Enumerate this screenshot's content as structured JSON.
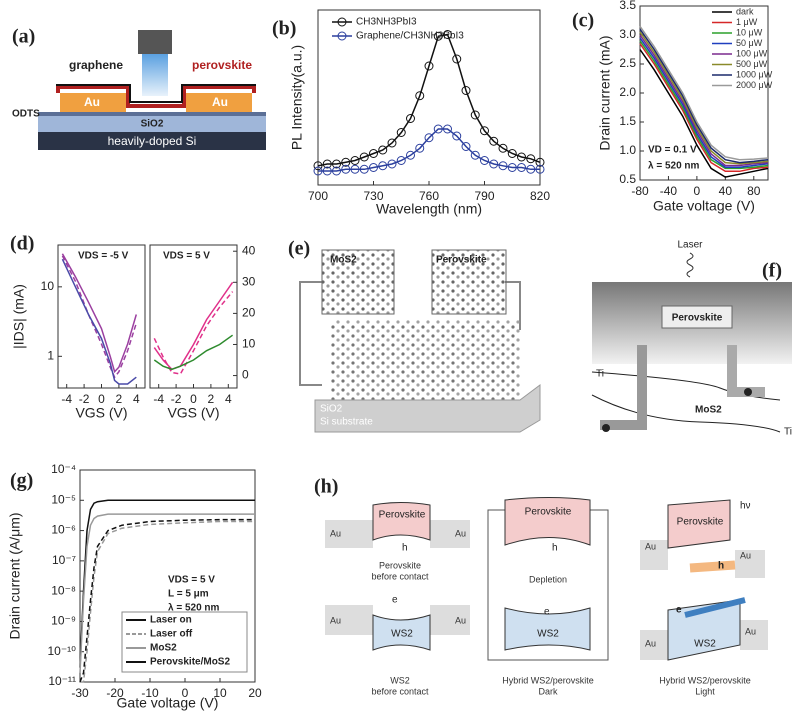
{
  "chart_data": [
    {
      "type": "line",
      "panel": "(b)",
      "xlabel": "Wavelength (nm)",
      "ylabel": "PL Intensity(a.u.)",
      "x": [
        700,
        705,
        710,
        715,
        720,
        725,
        730,
        735,
        740,
        745,
        750,
        755,
        760,
        765,
        770,
        775,
        780,
        785,
        790,
        795,
        800,
        805,
        810,
        815,
        820
      ],
      "series": [
        {
          "name": "CH3NH3PbI3",
          "color": "#111111",
          "marker": "circle-plus",
          "values": [
            0.11,
            0.12,
            0.12,
            0.13,
            0.14,
            0.16,
            0.18,
            0.2,
            0.24,
            0.3,
            0.38,
            0.51,
            0.68,
            0.85,
            0.86,
            0.72,
            0.54,
            0.4,
            0.31,
            0.25,
            0.21,
            0.18,
            0.16,
            0.15,
            0.13
          ]
        },
        {
          "name": "Graphene/CH3NH3PbI3",
          "color": "#2b3f9e",
          "marker": "circle-plus",
          "values": [
            0.08,
            0.08,
            0.08,
            0.09,
            0.09,
            0.09,
            0.1,
            0.11,
            0.12,
            0.14,
            0.17,
            0.21,
            0.27,
            0.32,
            0.32,
            0.28,
            0.22,
            0.17,
            0.14,
            0.12,
            0.11,
            0.1,
            0.1,
            0.09,
            0.09
          ]
        }
      ],
      "xlim": [
        700,
        820
      ],
      "ylim": [
        0,
        1
      ],
      "xticks": [
        700,
        730,
        760,
        790,
        820
      ],
      "legend": "upper left"
    },
    {
      "type": "line",
      "panel": "(c)",
      "xlabel": "Gate voltage (V)",
      "ylabel": "Drain current (mA)",
      "x": [
        -80,
        -60,
        -40,
        -20,
        0,
        20,
        40,
        60,
        80,
        100
      ],
      "series": [
        {
          "name": "dark",
          "color": "#000000",
          "values": [
            2.75,
            2.4,
            2.0,
            1.6,
            1.1,
            0.7,
            0.55,
            0.6,
            0.65,
            0.7
          ]
        },
        {
          "name": "1 μW",
          "color": "#d62728",
          "values": [
            2.85,
            2.5,
            2.1,
            1.7,
            1.2,
            0.8,
            0.65,
            0.65,
            0.7,
            0.72
          ]
        },
        {
          "name": "10 μW",
          "color": "#2ca02c",
          "values": [
            2.9,
            2.55,
            2.15,
            1.75,
            1.25,
            0.85,
            0.7,
            0.7,
            0.72,
            0.75
          ]
        },
        {
          "name": "50 μW",
          "color": "#1f3fbf",
          "values": [
            2.95,
            2.6,
            2.2,
            1.8,
            1.3,
            0.9,
            0.72,
            0.72,
            0.75,
            0.78
          ]
        },
        {
          "name": "100 μW",
          "color": "#7b2a8e",
          "values": [
            3.0,
            2.65,
            2.25,
            1.85,
            1.35,
            0.95,
            0.75,
            0.75,
            0.78,
            0.8
          ]
        },
        {
          "name": "500 μW",
          "color": "#8a8a2a",
          "values": [
            3.05,
            2.7,
            2.3,
            1.9,
            1.4,
            1.0,
            0.8,
            0.78,
            0.8,
            0.82
          ]
        },
        {
          "name": "1000 μW",
          "color": "#1b2a6b",
          "values": [
            3.1,
            2.75,
            2.35,
            1.95,
            1.45,
            1.05,
            0.85,
            0.8,
            0.82,
            0.85
          ]
        },
        {
          "name": "2000 μW",
          "color": "#9a9a9a",
          "values": [
            3.15,
            2.8,
            2.4,
            2.0,
            1.5,
            1.1,
            0.9,
            0.85,
            0.86,
            0.88
          ]
        }
      ],
      "xlim": [
        -80,
        100
      ],
      "ylim": [
        0.5,
        3.5
      ],
      "xticks": [
        -80,
        -40,
        0,
        40,
        80
      ],
      "yticks": [
        0.5,
        {
          "value": 1,
          "label": "1.0"
        },
        1.5,
        {
          "value": 2,
          "label": "2.0"
        },
        2.5,
        {
          "value": 3,
          "label": "3.0"
        },
        3.5
      ],
      "annotations": [
        "VD = 0.1 V",
        "λ = 520 nm"
      ],
      "legend": "upper right"
    },
    {
      "type": "line",
      "panel": "(d)",
      "xlabel": "VGS (V)",
      "ylabel": "|IDS| (mA)",
      "log_y": true,
      "x": [
        -4.5,
        -3,
        -1.5,
        0,
        1,
        1.5,
        2,
        3,
        4
      ],
      "series": [
        {
          "color": "#9b3fa0",
          "values": [
            30,
            14,
            6,
            2.5,
            1,
            0.6,
            0.7,
            1.5,
            4
          ]
        },
        {
          "color": "#9b3fa0",
          "dash": true,
          "values": [
            28,
            12,
            4,
            1.5,
            0.7,
            0.5,
            0.6,
            1.2,
            3
          ]
        },
        {
          "color": "#4a4aa8",
          "values": [
            25,
            10,
            4,
            1.8,
            0.8,
            0.45,
            0.4,
            0.4,
            0.5
          ]
        }
      ],
      "xlim": [
        -5,
        5
      ],
      "ylim": [
        0.35,
        40
      ],
      "xticks": [
        -4,
        -2,
        0,
        2,
        4
      ],
      "yticks": [
        1,
        10
      ],
      "annotations": [
        "VDS = -5 V"
      ]
    },
    {
      "type": "line",
      "xlabel": "VGS (V)",
      "y_axis_side": "right",
      "x": [
        -4.5,
        -3.5,
        -2.5,
        -1.5,
        0,
        1.5,
        3,
        4.5
      ],
      "series": [
        {
          "color": "#e0308a",
          "values": [
            9,
            5,
            2,
            3,
            10,
            18,
            24,
            30
          ]
        },
        {
          "color": "#e0308a",
          "dash": true,
          "values": [
            12,
            6,
            1,
            0.5,
            8,
            16,
            22,
            27
          ]
        },
        {
          "color": "#2e8b2e",
          "values": [
            5,
            3,
            2,
            3,
            5,
            8,
            10,
            13
          ]
        }
      ],
      "xlim": [
        -5,
        5
      ],
      "ylim": [
        -4,
        42
      ],
      "xticks": [
        -4,
        -2,
        0,
        2,
        4
      ],
      "yticks": [
        0,
        10,
        20,
        30,
        40
      ],
      "annotations": [
        "VDS = 5 V"
      ]
    },
    {
      "type": "line",
      "panel": "(g)",
      "xlabel": "Gate voltage (V)",
      "ylabel": "Drain current (A/μm)",
      "log_y": true,
      "x": [
        -30,
        -29,
        -28,
        -27,
        -26,
        -25,
        -22,
        -18,
        -10,
        0,
        10,
        20
      ],
      "series": [
        {
          "color": "#111111",
          "values": [
            3e-11,
            1e-08,
            1e-06,
            5e-06,
            8e-06,
            9e-06,
            1e-05,
            1e-05,
            1e-05,
            1e-05,
            1e-05,
            1e-05
          ]
        },
        {
          "color": "#999999",
          "values": [
            2e-11,
            5e-09,
            3e-07,
            1.5e-06,
            2.5e-06,
            3e-06,
            3.5e-06,
            3.5e-06,
            3.5e-06,
            3.5e-06,
            3.5e-06,
            3.5e-06
          ]
        },
        {
          "color": "#999999",
          "dash": true,
          "values": [
            1e-11,
            1e-11,
            1e-10,
            2e-09,
            3e-08,
            2e-07,
            8e-07,
            1.2e-06,
            1.6e-06,
            1.8e-06,
            2e-06,
            2e-06
          ]
        },
        {
          "color": "#111111",
          "dash": true,
          "values": [
            1e-11,
            2e-11,
            3e-10,
            5e-09,
            6e-08,
            3e-07,
            1e-06,
            1.5e-06,
            2e-06,
            2.2e-06,
            2.3e-06,
            2.3e-06
          ]
        }
      ],
      "xlim": [
        -30,
        20
      ],
      "ylim": [
        1e-11,
        0.0001
      ],
      "xticks": [
        -30,
        -20,
        -10,
        0,
        10,
        20
      ],
      "yticks": [
        {
          "value": 1e-11,
          "label": "10⁻¹¹"
        },
        {
          "value": 1e-10,
          "label": "10⁻¹⁰"
        },
        {
          "value": 1e-09,
          "label": "10⁻⁹"
        },
        {
          "value": 1e-08,
          "label": "10⁻⁸"
        },
        {
          "value": 1e-07,
          "label": "10⁻⁷"
        },
        {
          "value": 1e-06,
          "label": "10⁻⁶"
        },
        {
          "value": 1e-05,
          "label": "10⁻⁵"
        },
        {
          "value": 0.0001,
          "label": "10⁻⁴"
        }
      ],
      "annotations": [
        "VDS = 5 V",
        "L = 5 μm",
        "λ = 520 nm"
      ],
      "legend": "lower left",
      "legend_entries": [
        {
          "label": "Laser on",
          "color": "#111111"
        },
        {
          "label": "Laser off",
          "color": "#999999",
          "dash": true
        },
        {
          "label": "MoS2",
          "color": "#999999"
        },
        {
          "label": "Perovskite/MoS2",
          "color": "#111111"
        }
      ]
    }
  ],
  "diagrams": {
    "panel_a": {
      "label": "(a)",
      "graphene": "graphene",
      "perovskite": "perovskite",
      "au_left": "Au",
      "au_right": "Au",
      "odts": "ODTS",
      "sio2": "SiO2",
      "substrate": "heavily-doped Si"
    },
    "panel_e": {
      "label": "(e)",
      "mos2": "MoS2",
      "perovskite": "Perovskite",
      "sio2": "SiO2",
      "substrate": "Si substrate"
    },
    "panel_f": {
      "label": "(f)",
      "laser": "Laser",
      "perovskite": "Perovskite",
      "ti_left": "Ti",
      "mos2": "MoS2",
      "ti_right": "Ti"
    },
    "panel_h": {
      "label": "(h)",
      "left": {
        "perovskite": "Perovskite",
        "h": "h",
        "au": [
          "Au",
          "Au",
          "Au",
          "Au"
        ],
        "caption_top": [
          "Perovskite",
          "before contact"
        ],
        "e": "e",
        "ws2": "WS2",
        "caption_bottom": [
          "WS2",
          "before contact"
        ]
      },
      "middle": {
        "perovskite": "Perovskite",
        "h": "h",
        "depletion": "Depletion",
        "e": "e",
        "ws2": "WS2",
        "caption": [
          "Hybrid WS2/perovskite",
          "Dark"
        ]
      },
      "right": {
        "hv": "hν",
        "perovskite": "Perovskite",
        "h": "h",
        "e": "e",
        "ws2": "WS2",
        "au": [
          "Au",
          "Au",
          "Au",
          "Au"
        ],
        "caption": [
          "Hybrid WS2/perovskite",
          "Light"
        ]
      }
    }
  }
}
